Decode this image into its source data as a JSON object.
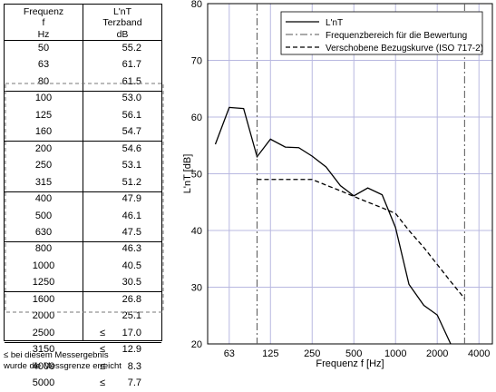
{
  "table": {
    "header_freq": [
      "Frequenz",
      "f",
      "Hz"
    ],
    "header_level": [
      "L'nT",
      "Terzband",
      "dB"
    ],
    "rows": [
      {
        "f": "50",
        "le": "",
        "v": "55.2"
      },
      {
        "f": "63",
        "le": "",
        "v": "61.7"
      },
      {
        "f": "80",
        "le": "",
        "v": "61.5"
      },
      {
        "f": "100",
        "le": "",
        "v": "53.0"
      },
      {
        "f": "125",
        "le": "",
        "v": "56.1"
      },
      {
        "f": "160",
        "le": "",
        "v": "54.7"
      },
      {
        "f": "200",
        "le": "",
        "v": "54.6"
      },
      {
        "f": "250",
        "le": "",
        "v": "53.1"
      },
      {
        "f": "315",
        "le": "",
        "v": "51.2"
      },
      {
        "f": "400",
        "le": "",
        "v": "47.9"
      },
      {
        "f": "500",
        "le": "",
        "v": "46.1"
      },
      {
        "f": "630",
        "le": "",
        "v": "47.5"
      },
      {
        "f": "800",
        "le": "",
        "v": "46.3"
      },
      {
        "f": "1000",
        "le": "",
        "v": "40.5"
      },
      {
        "f": "1250",
        "le": "",
        "v": "30.5"
      },
      {
        "f": "1600",
        "le": "",
        "v": "26.8"
      },
      {
        "f": "2000",
        "le": "",
        "v": "25.1"
      },
      {
        "f": "2500",
        "le": "≤",
        "v": "17.0"
      },
      {
        "f": "3150",
        "le": "≤",
        "v": "12.9"
      },
      {
        "f": "4000",
        "le": "≤",
        "v": "8.3"
      },
      {
        "f": "5000",
        "le": "≤",
        "v": "7.7"
      }
    ]
  },
  "note": [
    "≤ bei diesem Messergebnis",
    "wurde die Messgrenze erreicht"
  ],
  "chart_data": {
    "type": "line",
    "xlabel": "Frequenz f [Hz]",
    "ylabel": "L'nT [dB]",
    "x_scale": "log",
    "xlim": [
      44,
      5000
    ],
    "ylim": [
      20,
      80
    ],
    "x_ticks": [
      63,
      125,
      250,
      500,
      1000,
      2000,
      4000
    ],
    "y_ticks": [
      20,
      30,
      40,
      50,
      60,
      70,
      80
    ],
    "grid": true,
    "legend_position": "top-right",
    "series": [
      {
        "name": "L'nT",
        "style": "solid",
        "x": [
          50,
          63,
          80,
          100,
          125,
          160,
          200,
          250,
          315,
          400,
          500,
          630,
          800,
          1000,
          1250,
          1600,
          2000,
          2500
        ],
        "y": [
          55.2,
          61.7,
          61.5,
          53.0,
          56.1,
          54.7,
          54.6,
          53.1,
          51.2,
          47.9,
          46.1,
          47.5,
          46.3,
          40.5,
          30.5,
          26.8,
          25.1,
          17.0
        ]
      },
      {
        "name": "Frequenzbereich für die Bewertung",
        "style": "dashdot",
        "x_lines": [
          100,
          3150
        ]
      },
      {
        "name": "Verschobene Bezugskurve (ISO 717-2)",
        "style": "dashed",
        "x": [
          100,
          125,
          160,
          200,
          250,
          315,
          400,
          500,
          630,
          800,
          1000,
          1250,
          1600,
          2000,
          2500,
          3150
        ],
        "y": [
          49,
          49,
          49,
          49,
          49,
          48,
          47,
          46,
          45,
          44,
          43,
          40,
          37,
          34,
          31,
          28
        ]
      }
    ]
  }
}
